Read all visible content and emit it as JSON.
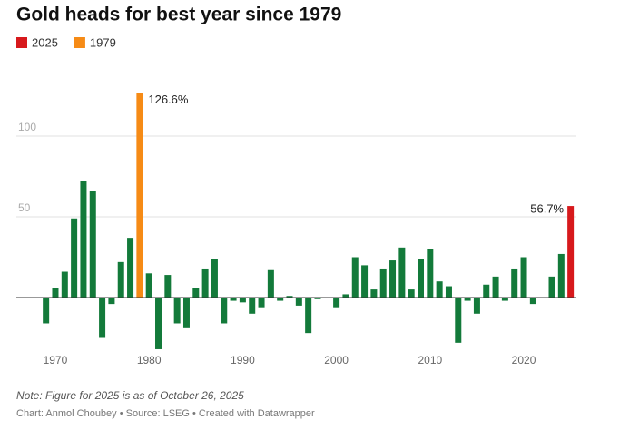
{
  "chart_data": {
    "type": "bar",
    "title": "Gold heads for best year since 1979",
    "legend": [
      {
        "name": "2025",
        "color": "#d7191c"
      },
      {
        "name": "1979",
        "color": "#f68b16"
      }
    ],
    "x": [
      1969,
      1970,
      1971,
      1972,
      1973,
      1974,
      1975,
      1976,
      1977,
      1978,
      1979,
      1980,
      1981,
      1982,
      1983,
      1984,
      1985,
      1986,
      1987,
      1988,
      1989,
      1990,
      1991,
      1992,
      1993,
      1994,
      1995,
      1996,
      1997,
      1998,
      1999,
      2000,
      2001,
      2002,
      2003,
      2004,
      2005,
      2006,
      2007,
      2008,
      2009,
      2010,
      2011,
      2012,
      2013,
      2014,
      2015,
      2016,
      2017,
      2018,
      2019,
      2020,
      2021,
      2022,
      2023,
      2024,
      2025
    ],
    "values": [
      -16,
      6,
      16,
      49,
      72,
      66,
      -25,
      -4,
      22,
      37,
      126.6,
      15,
      -32,
      14,
      -16,
      -19,
      6,
      18,
      24,
      -16,
      -2,
      -3,
      -10,
      -6,
      17,
      -2,
      1,
      -5,
      -22,
      -1,
      0,
      -6,
      2,
      25,
      20,
      5,
      18,
      23,
      31,
      5,
      24,
      30,
      10,
      7,
      -28,
      -2,
      -10,
      8,
      13,
      -2,
      18,
      25,
      -4,
      0,
      13,
      27,
      56.7
    ],
    "value_labels": [
      null,
      null,
      null,
      null,
      null,
      null,
      null,
      null,
      null,
      null,
      "126.6%",
      null,
      null,
      null,
      null,
      null,
      null,
      null,
      null,
      null,
      null,
      null,
      null,
      null,
      null,
      null,
      null,
      null,
      null,
      null,
      null,
      null,
      null,
      null,
      null,
      null,
      null,
      null,
      null,
      null,
      null,
      null,
      null,
      null,
      null,
      null,
      null,
      null,
      null,
      null,
      null,
      null,
      null,
      null,
      null,
      null,
      "56.7%"
    ],
    "color": "#137a3a",
    "colors": {
      "1979": "#f68b16",
      "2025": "#d7191c"
    },
    "xlim": [
      1968.5,
      2025.5
    ],
    "xticks": [
      1970,
      1980,
      1990,
      2000,
      2010,
      2020
    ],
    "ylim": [
      -35,
      130
    ],
    "yticks": [
      50,
      100
    ],
    "grid": true,
    "note": "Note: Figure for 2025 is as of October 26, 2025",
    "source": "Chart: Anmol Choubey • Source: LSEG • Created with Datawrapper"
  }
}
